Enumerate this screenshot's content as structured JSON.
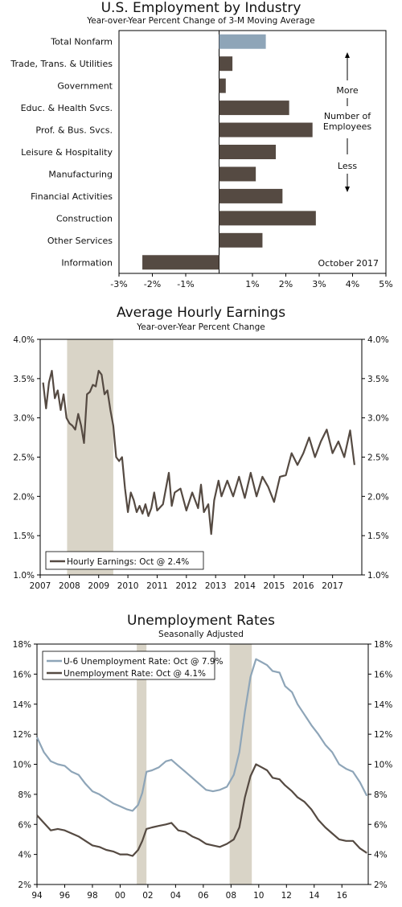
{
  "charts": [
    {
      "type": "bar",
      "orientation": "horizontal",
      "title": "U.S. Employment by Industry",
      "subtitle": "Year-over-Year Percent Change of 3-M Moving Average",
      "categories": [
        "Total Nonfarm",
        "Trade, Trans. & Utilities",
        "Government",
        "Educ. & Health Svcs.",
        "Prof. & Bus. Svcs.",
        "Leisure & Hospitality",
        "Manufacturing",
        "Financial Activities",
        "Construction",
        "Other Services",
        "Information"
      ],
      "values": [
        1.4,
        0.4,
        0.2,
        2.1,
        2.8,
        1.7,
        1.1,
        1.9,
        2.9,
        1.3,
        -2.3
      ],
      "highlight_color": "#8ea5b8",
      "bar_color": "#554a42",
      "xlim": [
        -3,
        5
      ],
      "x_ticks": [
        "-3%",
        "-2%",
        "-1%",
        "1%",
        "2%",
        "3%",
        "4%",
        "5%"
      ],
      "x_tick_values": [
        -3,
        -2,
        -1,
        1,
        2,
        3,
        4,
        5
      ],
      "annotation_more": "More",
      "annotation_number": "Number of",
      "annotation_employees": "Employees",
      "annotation_less": "Less",
      "date_label": "October 2017"
    },
    {
      "type": "line",
      "title": "Average Hourly Earnings",
      "subtitle": "Year-over-Year Percent Change",
      "ylim": [
        1.0,
        4.0
      ],
      "y_ticks": [
        "4.0%",
        "3.5%",
        "3.0%",
        "2.5%",
        "2.0%",
        "1.5%",
        "1.0%"
      ],
      "y_tick_values": [
        4.0,
        3.5,
        3.0,
        2.5,
        2.0,
        1.5,
        1.0
      ],
      "xlim": [
        2007,
        2018
      ],
      "x_ticks": [
        "2007",
        "2008",
        "2009",
        "2010",
        "2011",
        "2012",
        "2013",
        "2014",
        "2015",
        "2016",
        "2017"
      ],
      "recessions": [
        [
          2007.92,
          2009.5
        ]
      ],
      "recession_color": "#d9d4c7",
      "series": [
        {
          "name": "Hourly Earnings: Oct @ 2.4%",
          "color": "#554a42",
          "x": [
            2007.1,
            2007.2,
            2007.3,
            2007.4,
            2007.5,
            2007.6,
            2007.7,
            2007.8,
            2007.9,
            2008.0,
            2008.1,
            2008.2,
            2008.3,
            2008.4,
            2008.5,
            2008.6,
            2008.7,
            2008.8,
            2008.9,
            2009.0,
            2009.1,
            2009.2,
            2009.3,
            2009.4,
            2009.5,
            2009.6,
            2009.7,
            2009.8,
            2009.9,
            2010.0,
            2010.1,
            2010.2,
            2010.3,
            2010.4,
            2010.5,
            2010.6,
            2010.7,
            2010.8,
            2010.9,
            2011.0,
            2011.2,
            2011.4,
            2011.5,
            2011.6,
            2011.8,
            2012.0,
            2012.2,
            2012.4,
            2012.5,
            2012.6,
            2012.75,
            2012.85,
            2012.95,
            2013.1,
            2013.2,
            2013.4,
            2013.6,
            2013.8,
            2014.0,
            2014.2,
            2014.4,
            2014.6,
            2014.8,
            2015.0,
            2015.2,
            2015.4,
            2015.6,
            2015.8,
            2016.0,
            2016.2,
            2016.4,
            2016.6,
            2016.8,
            2017.0,
            2017.2,
            2017.4,
            2017.6,
            2017.75
          ],
          "y": [
            3.45,
            3.12,
            3.45,
            3.6,
            3.25,
            3.35,
            3.1,
            3.3,
            3.0,
            2.93,
            2.9,
            2.85,
            3.05,
            2.9,
            2.68,
            3.3,
            3.33,
            3.42,
            3.4,
            3.6,
            3.55,
            3.3,
            3.35,
            3.1,
            2.9,
            2.5,
            2.45,
            2.5,
            2.1,
            1.8,
            2.05,
            1.95,
            1.8,
            1.88,
            1.78,
            1.9,
            1.75,
            1.85,
            2.05,
            1.82,
            1.9,
            2.3,
            1.88,
            2.05,
            2.1,
            1.82,
            2.05,
            1.85,
            2.15,
            1.8,
            1.9,
            1.52,
            1.95,
            2.2,
            2.0,
            2.2,
            2.0,
            2.25,
            1.98,
            2.3,
            2.0,
            2.25,
            2.12,
            1.93,
            2.25,
            2.27,
            2.55,
            2.4,
            2.55,
            2.75,
            2.5,
            2.7,
            2.85,
            2.55,
            2.7,
            2.5,
            2.84,
            2.4
          ]
        }
      ]
    },
    {
      "type": "line",
      "title": "Unemployment Rates",
      "subtitle": "Seasonally Adjusted",
      "ylim": [
        2,
        18
      ],
      "y_ticks": [
        "18%",
        "16%",
        "14%",
        "12%",
        "10%",
        "8%",
        "6%",
        "4%",
        "2%"
      ],
      "y_tick_values": [
        18,
        16,
        14,
        12,
        10,
        8,
        6,
        4,
        2
      ],
      "xlim": [
        1994,
        2017.9
      ],
      "x_ticks": [
        "94",
        "96",
        "98",
        "00",
        "02",
        "04",
        "06",
        "08",
        "10",
        "12",
        "14",
        "16"
      ],
      "recessions": [
        [
          2001.2,
          2001.9
        ],
        [
          2007.9,
          2009.5
        ]
      ],
      "recession_color": "#d9d4c7",
      "series": [
        {
          "name": "U-6 Unemployment Rate: Oct @ 7.9%",
          "color": "#8ea5b8",
          "x": [
            1994.0,
            1994.5,
            1995.0,
            1995.5,
            1996.0,
            1996.5,
            1997.0,
            1997.5,
            1998.0,
            1998.5,
            1999.0,
            1999.5,
            2000.0,
            2000.5,
            2000.9,
            2001.3,
            2001.6,
            2001.9,
            2002.3,
            2002.8,
            2003.3,
            2003.7,
            2004.2,
            2004.7,
            2005.2,
            2005.7,
            2006.2,
            2006.7,
            2007.2,
            2007.7,
            2008.2,
            2008.6,
            2009.0,
            2009.4,
            2009.8,
            2010.2,
            2010.6,
            2011.0,
            2011.5,
            2011.9,
            2012.4,
            2012.8,
            2013.3,
            2013.8,
            2014.3,
            2014.8,
            2015.3,
            2015.8,
            2016.3,
            2016.8,
            2017.3,
            2017.8
          ],
          "y": [
            11.8,
            10.8,
            10.2,
            10.0,
            9.9,
            9.5,
            9.3,
            8.7,
            8.2,
            8.0,
            7.7,
            7.4,
            7.2,
            7.0,
            6.9,
            7.3,
            8.1,
            9.5,
            9.6,
            9.8,
            10.2,
            10.3,
            9.9,
            9.5,
            9.1,
            8.7,
            8.3,
            8.2,
            8.3,
            8.5,
            9.3,
            10.8,
            13.5,
            15.8,
            17.0,
            16.8,
            16.6,
            16.2,
            16.1,
            15.2,
            14.8,
            14.0,
            13.3,
            12.6,
            12.0,
            11.3,
            10.8,
            10.0,
            9.7,
            9.5,
            8.8,
            7.9
          ]
        },
        {
          "name": "Unemployment Rate: Oct @ 4.1%",
          "color": "#554a42",
          "x": [
            1994.0,
            1994.5,
            1995.0,
            1995.5,
            1996.0,
            1996.5,
            1997.0,
            1997.5,
            1998.0,
            1998.5,
            1999.0,
            1999.5,
            2000.0,
            2000.5,
            2000.9,
            2001.3,
            2001.6,
            2001.9,
            2002.3,
            2002.8,
            2003.3,
            2003.7,
            2004.2,
            2004.7,
            2005.2,
            2005.7,
            2006.2,
            2006.7,
            2007.2,
            2007.7,
            2008.2,
            2008.6,
            2009.0,
            2009.4,
            2009.8,
            2010.2,
            2010.6,
            2011.0,
            2011.5,
            2011.9,
            2012.4,
            2012.8,
            2013.3,
            2013.8,
            2014.3,
            2014.8,
            2015.3,
            2015.8,
            2016.3,
            2016.8,
            2017.3,
            2017.8
          ],
          "y": [
            6.6,
            6.1,
            5.6,
            5.7,
            5.6,
            5.4,
            5.2,
            4.9,
            4.6,
            4.5,
            4.3,
            4.2,
            4.0,
            4.0,
            3.9,
            4.3,
            4.9,
            5.7,
            5.8,
            5.9,
            6.0,
            6.1,
            5.6,
            5.5,
            5.2,
            5.0,
            4.7,
            4.6,
            4.5,
            4.7,
            5.0,
            5.8,
            7.8,
            9.2,
            10.0,
            9.8,
            9.6,
            9.1,
            9.0,
            8.6,
            8.2,
            7.8,
            7.5,
            7.0,
            6.3,
            5.8,
            5.4,
            5.0,
            4.9,
            4.9,
            4.4,
            4.1
          ]
        }
      ]
    }
  ]
}
